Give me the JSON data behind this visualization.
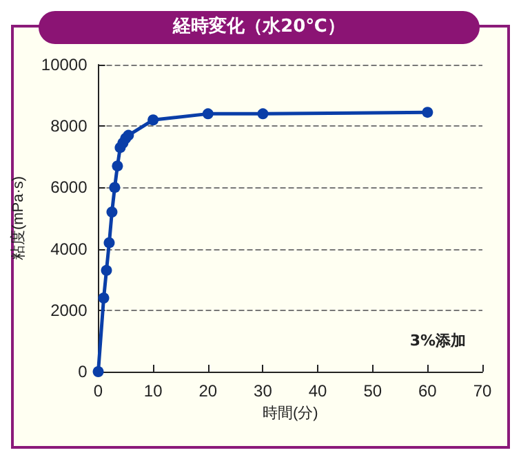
{
  "chart_data": {
    "type": "line",
    "title": "経時変化（水20℃）",
    "xlabel": "時間(分)",
    "ylabel": "粘度(mPa·s)",
    "annotations": [
      "3%添加"
    ],
    "x": [
      0,
      1,
      1.5,
      2,
      2.5,
      3,
      3.5,
      4,
      4.5,
      5,
      5.5,
      10,
      20,
      30,
      60
    ],
    "series": [
      {
        "color": "#0a3ea8",
        "values": [
          0,
          2400,
          3300,
          4200,
          5200,
          6000,
          6700,
          7300,
          7450,
          7600,
          7700,
          8200,
          8400,
          8400,
          8450
        ]
      }
    ],
    "xlim": [
      0,
      70
    ],
    "xticks": [
      0,
      10,
      20,
      30,
      40,
      50,
      60,
      70
    ],
    "ylim": [
      0,
      10000
    ],
    "yticks": [
      0,
      2000,
      4000,
      6000,
      8000,
      10000
    ],
    "grid": "y",
    "marker": "circle",
    "line_style": "solid"
  }
}
